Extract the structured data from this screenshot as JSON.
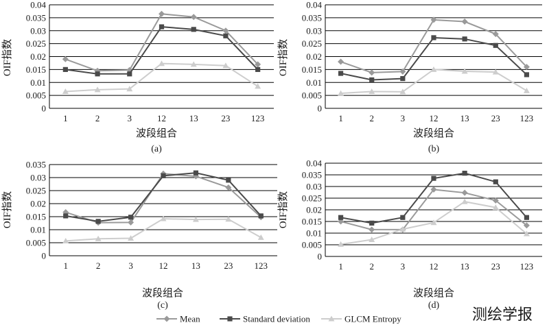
{
  "chart_data": [
    {
      "type": "line",
      "caption": "(a)",
      "categories": [
        "1",
        "2",
        "3",
        "12",
        "13",
        "23",
        "123"
      ],
      "xlabel": "波段组合",
      "ylabel": "OIF指数",
      "ylim": [
        0,
        0.04
      ],
      "yticks": [
        "0",
        "0.005",
        "0.01",
        "0.015",
        "0.02",
        "0.025",
        "0.03",
        "0.035",
        "0.04"
      ],
      "grid": true,
      "series": [
        {
          "name": "Mean",
          "values": [
            0.019,
            0.0145,
            0.0148,
            0.0365,
            0.0353,
            0.03,
            0.017
          ]
        },
        {
          "name": "Standard deviation",
          "values": [
            0.015,
            0.0133,
            0.0133,
            0.0315,
            0.0305,
            0.028,
            0.015
          ]
        },
        {
          "name": "GLCM Entropy",
          "values": [
            0.0065,
            0.0072,
            0.0075,
            0.0173,
            0.017,
            0.0165,
            0.0085
          ]
        }
      ]
    },
    {
      "type": "line",
      "caption": "(b)",
      "categories": [
        "1",
        "2",
        "3",
        "12",
        "13",
        "23",
        "123"
      ],
      "xlabel": "波段组合",
      "ylabel": "OIF指数",
      "ylim": [
        0,
        0.04
      ],
      "yticks": [
        "0",
        "0.005",
        "0.01",
        "0.015",
        "0.02",
        "0.025",
        "0.03",
        "0.035",
        "0.04"
      ],
      "grid": true,
      "series": [
        {
          "name": "Mean",
          "values": [
            0.018,
            0.0138,
            0.0142,
            0.0342,
            0.0335,
            0.0287,
            0.016
          ]
        },
        {
          "name": "Standard deviation",
          "values": [
            0.0135,
            0.011,
            0.0115,
            0.0273,
            0.0268,
            0.0243,
            0.013
          ]
        },
        {
          "name": "GLCM Entropy",
          "values": [
            0.0058,
            0.0065,
            0.0064,
            0.015,
            0.0143,
            0.014,
            0.0068
          ]
        }
      ]
    },
    {
      "type": "line",
      "caption": "(c)",
      "categories": [
        "1",
        "2",
        "3",
        "12",
        "13",
        "23",
        "123"
      ],
      "xlabel": "波段组合",
      "ylabel": "OIF指数",
      "ylim": [
        0,
        0.035
      ],
      "yticks": [
        "0",
        "0.005",
        "0.01",
        "0.015",
        "0.02",
        "0.025",
        "0.03",
        "0.035"
      ],
      "grid": true,
      "series": [
        {
          "name": "Mean",
          "values": [
            0.0167,
            0.0127,
            0.0128,
            0.0315,
            0.0305,
            0.0262,
            0.0148
          ]
        },
        {
          "name": "Standard deviation",
          "values": [
            0.0153,
            0.0132,
            0.0148,
            0.0307,
            0.0318,
            0.029,
            0.0153
          ]
        },
        {
          "name": "GLCM Entropy",
          "values": [
            0.0057,
            0.0065,
            0.0067,
            0.0142,
            0.0139,
            0.014,
            0.007
          ]
        }
      ]
    },
    {
      "type": "line",
      "caption": "(d)",
      "categories": [
        "1",
        "2",
        "3",
        "12",
        "13",
        "23",
        "123"
      ],
      "xlabel": "波段组合",
      "ylabel": "OIF指数",
      "ylim": [
        0,
        0.04
      ],
      "yticks": [
        "0",
        "0.005",
        "0.01",
        "0.015",
        "0.02",
        "0.025",
        "0.03",
        "0.035",
        "0.04"
      ],
      "grid": true,
      "series": [
        {
          "name": "Mean",
          "values": [
            0.015,
            0.0115,
            0.0115,
            0.0287,
            0.0273,
            0.024,
            0.0133
          ]
        },
        {
          "name": "Standard deviation",
          "values": [
            0.0167,
            0.0143,
            0.0167,
            0.0335,
            0.0357,
            0.032,
            0.0167
          ]
        },
        {
          "name": "GLCM Entropy",
          "values": [
            0.0052,
            0.0072,
            0.0117,
            0.0145,
            0.0235,
            0.021,
            0.0097
          ]
        }
      ]
    }
  ],
  "legend": {
    "position": "bottom-center",
    "items": [
      {
        "name": "Mean",
        "label": "Mean",
        "color": "#9a9a9a"
      },
      {
        "name": "Standard deviation",
        "label": "Standard deviation",
        "color": "#4a4a4a"
      },
      {
        "name": "GLCM Entropy",
        "label": "GLCM Entropy",
        "color": "#cdcdcd"
      }
    ]
  },
  "watermark": "测绘学报"
}
